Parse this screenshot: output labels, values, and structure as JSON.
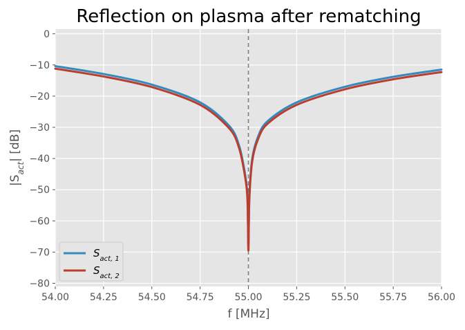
{
  "chart_data": {
    "type": "line",
    "title": "Reflection on plasma after rematching",
    "xlabel": "f [MHz]",
    "ylabel_parts": [
      "|S",
      "act",
      "| [dB]"
    ],
    "xlim": [
      54.0,
      56.0
    ],
    "ylim": [
      -81,
      1.5
    ],
    "xticks": [
      54.0,
      54.25,
      54.5,
      54.75,
      55.0,
      55.25,
      55.5,
      55.75,
      56.0
    ],
    "xtick_labels": [
      "54.00",
      "54.25",
      "54.50",
      "54.75",
      "55.00",
      "55.25",
      "55.50",
      "55.75",
      "56.00"
    ],
    "yticks": [
      0,
      -10,
      -20,
      -30,
      -40,
      -50,
      -60,
      -70,
      -80
    ],
    "ytick_labels": [
      "0",
      "−10",
      "−20",
      "−30",
      "−40",
      "−50",
      "−60",
      "−70",
      "−80"
    ],
    "grid": true,
    "style": "ggplot",
    "legend_position": "lower-left",
    "vline": {
      "x": 55.0,
      "style": "dashed",
      "color": "#808080"
    },
    "series": [
      {
        "name_parts": [
          "S",
          "act, 1"
        ],
        "color": "#348ABD",
        "x": [
          54.0,
          54.25,
          54.5,
          54.75,
          54.9,
          54.95,
          54.98,
          54.995,
          55.0,
          55.005,
          55.02,
          55.05,
          55.1,
          55.25,
          55.5,
          55.75,
          56.0
        ],
        "y": [
          -10.4,
          -12.9,
          -16.3,
          -22.0,
          -29.5,
          -35.5,
          -44.0,
          -52.0,
          -67.5,
          -52.0,
          -40.0,
          -33.0,
          -28.0,
          -22.0,
          -17.0,
          -13.8,
          -11.5
        ]
      },
      {
        "name_parts": [
          "S",
          "act, 2"
        ],
        "color": "#BB3D2E",
        "x": [
          54.0,
          54.25,
          54.5,
          54.75,
          54.9,
          54.95,
          54.98,
          54.995,
          55.0,
          55.005,
          55.02,
          55.05,
          55.1,
          55.25,
          55.5,
          55.75,
          56.0
        ],
        "y": [
          -11.2,
          -13.7,
          -17.1,
          -22.8,
          -30.3,
          -36.3,
          -44.8,
          -53.0,
          -69.5,
          -53.0,
          -40.8,
          -33.8,
          -28.8,
          -22.8,
          -17.8,
          -14.6,
          -12.3
        ]
      }
    ]
  }
}
